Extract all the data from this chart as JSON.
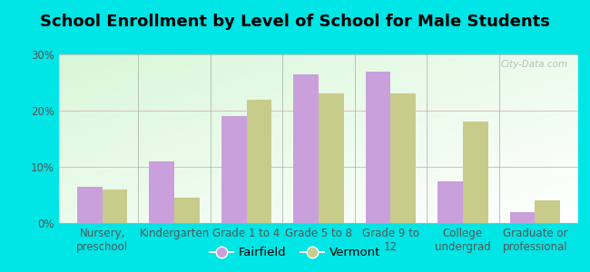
{
  "title": "School Enrollment by Level of School for Male Students",
  "categories": [
    "Nursery,\npreschool",
    "Kindergarten",
    "Grade 1 to 4",
    "Grade 5 to 8",
    "Grade 9 to\n12",
    "College\nundergrad",
    "Graduate or\nprofessional"
  ],
  "fairfield_values": [
    6.5,
    11.0,
    19.0,
    26.5,
    27.0,
    7.5,
    2.0
  ],
  "vermont_values": [
    6.0,
    4.5,
    22.0,
    23.0,
    23.0,
    18.0,
    4.0
  ],
  "fairfield_color": "#c9a0dc",
  "vermont_color": "#c8cc8a",
  "background_color": "#00e5e5",
  "ylim": [
    0,
    30
  ],
  "yticks": [
    0,
    10,
    20,
    30
  ],
  "ytick_labels": [
    "0%",
    "10%",
    "20%",
    "30%"
  ],
  "legend_labels": [
    "Fairfield",
    "Vermont"
  ],
  "title_fontsize": 13,
  "tick_fontsize": 8.5,
  "legend_fontsize": 9.5,
  "bar_width": 0.35,
  "watermark": "City-Data.com"
}
